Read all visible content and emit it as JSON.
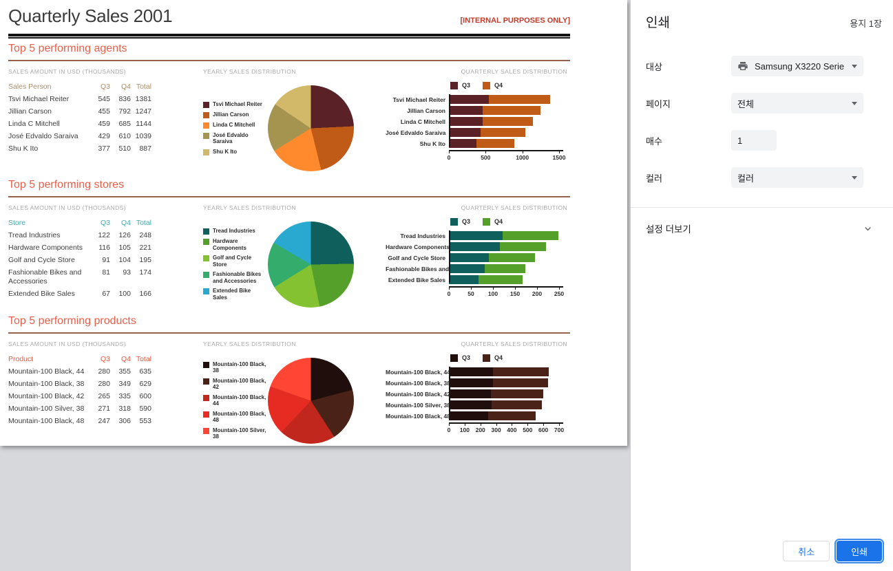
{
  "preview": {
    "title": "Quarterly Sales 2001",
    "watermark": "[INTERNAL PURPOSES ONLY]",
    "sections": [
      {
        "heading": "Top 5 performing agents",
        "table_label": "SALES AMOUNT IN USD (THOUSANDS)",
        "pie_label": "YEARLY SALES DISTRIBUTION",
        "bar_label": "QUARTERLY SALES DISTRIBUTION",
        "entity_header": "Sales Person",
        "q3_header": "Q3",
        "q4_header": "Q4",
        "total_header": "Total",
        "header_color": "#a98d68",
        "rows": [
          {
            "name": "Tsvi Michael Reiter",
            "q3": 545,
            "q4": 836,
            "total": 1381
          },
          {
            "name": "Jillian Carson",
            "q3": 455,
            "q4": 792,
            "total": 1247
          },
          {
            "name": "Linda C Mitchell",
            "q3": 459,
            "q4": 685,
            "total": 1144
          },
          {
            "name": "José Edvaldo Saraiva",
            "q3": 429,
            "q4": 610,
            "total": 1039
          },
          {
            "name": "Shu K Ito",
            "q3": 377,
            "q4": 510,
            "total": 887
          }
        ]
      },
      {
        "heading": "Top 5 performing stores",
        "table_label": "SALES AMOUNT IN USD (THOUSANDS)",
        "pie_label": "YEARLY SALES DISTRIBUTION",
        "bar_label": "QUARTERLY SALES DISTRIBUTION",
        "entity_header": "Store",
        "q3_header": "Q3",
        "q4_header": "Q4",
        "total_header": "Total",
        "header_color": "#45a8b0",
        "rows": [
          {
            "name": "Tread Industries",
            "q3": 122,
            "q4": 126,
            "total": 248
          },
          {
            "name": "Hardware Components",
            "q3": 116,
            "q4": 105,
            "total": 221
          },
          {
            "name": "Golf and Cycle Store",
            "q3": 91,
            "q4": 104,
            "total": 195
          },
          {
            "name": "Fashionable Bikes and Accessories",
            "q3": 81,
            "q4": 93,
            "total": 174
          },
          {
            "name": "Extended Bike Sales",
            "q3": 67,
            "q4": 100,
            "total": 166
          }
        ]
      },
      {
        "heading": "Top 5 performing products",
        "table_label": "SALES AMOUNT IN USD (THOUSANDS)",
        "pie_label": "YEARLY SALES DISTRIBUTION",
        "bar_label": "QUARTERLY SALES DISTRIBUTION",
        "entity_header": "Product",
        "q3_header": "Q3",
        "q4_header": "Q4",
        "total_header": "Total",
        "header_color": "#e55a41",
        "rows": [
          {
            "name": "Mountain-100 Black, 44",
            "q3": 280,
            "q4": 355,
            "total": 635
          },
          {
            "name": "Mountain-100 Black, 38",
            "q3": 280,
            "q4": 349,
            "total": 629
          },
          {
            "name": "Mountain-100 Black, 42",
            "q3": 265,
            "q4": 335,
            "total": 600
          },
          {
            "name": "Mountain-100 Silver, 38",
            "q3": 271,
            "q4": 318,
            "total": 590
          },
          {
            "name": "Mountain-100 Black, 48",
            "q3": 247,
            "q4": 306,
            "total": 553
          }
        ]
      }
    ]
  },
  "chart_data": [
    {
      "type": "pie",
      "section": "Top 5 performing agents",
      "title": "YEARLY SALES DISTRIBUTION",
      "labels": [
        "Tsvi Michael Reiter",
        "Jillian Carson",
        "Linda C Mitchell",
        "José Edvaldo Saraiva",
        "Shu K Ito"
      ],
      "values": [
        1381,
        1247,
        1144,
        1039,
        887
      ],
      "colors": [
        "#5a2226",
        "#bf5a17",
        "#ff8a2e",
        "#a59450",
        "#d2b96a"
      ]
    },
    {
      "type": "bar",
      "section": "Top 5 performing agents",
      "title": "QUARTERLY SALES DISTRIBUTION",
      "horizontal": true,
      "stacked": true,
      "categories": [
        "Tsvi Michael Reiter",
        "Jillian Carson",
        "Linda C Mitchell",
        "José Edvaldo Saraiva",
        "Shu K Ito"
      ],
      "series": [
        {
          "name": "Q3",
          "color": "#5a2226",
          "values": [
            545,
            455,
            459,
            429,
            377
          ]
        },
        {
          "name": "Q4",
          "color": "#bf5a17",
          "values": [
            836,
            792,
            685,
            610,
            510
          ]
        }
      ],
      "xlim": [
        0,
        1500
      ],
      "xticks": [
        0,
        500,
        1000,
        1500
      ]
    },
    {
      "type": "pie",
      "section": "Top 5 performing stores",
      "title": "YEARLY SALES DISTRIBUTION",
      "labels": [
        "Tread Industries",
        "Hardware Components",
        "Golf and Cycle Store",
        "Fashionable Bikes and Accessories",
        "Extended Bike Sales"
      ],
      "values": [
        248,
        221,
        195,
        174,
        166
      ],
      "colors": [
        "#0f5f5c",
        "#55a02a",
        "#85c232",
        "#33ac6c",
        "#29a9cf"
      ]
    },
    {
      "type": "bar",
      "section": "Top 5 performing stores",
      "title": "QUARTERLY SALES DISTRIBUTION",
      "horizontal": true,
      "stacked": true,
      "categories": [
        "Tread Industries",
        "Hardware Components",
        "Golf and Cycle Store",
        "Fashionable Bikes and",
        "Extended Bike Sales"
      ],
      "series": [
        {
          "name": "Q3",
          "color": "#0f5f5c",
          "values": [
            122,
            116,
            91,
            81,
            67
          ]
        },
        {
          "name": "Q4",
          "color": "#55a02a",
          "values": [
            126,
            105,
            104,
            93,
            100
          ]
        }
      ],
      "xlim": [
        0,
        250
      ],
      "xticks": [
        0,
        50,
        100,
        150,
        200,
        250
      ]
    },
    {
      "type": "pie",
      "section": "Top 5 performing products",
      "title": "YEARLY SALES DISTRIBUTION",
      "labels": [
        "Mountain-100 Black, 38",
        "Mountain-100 Black, 42",
        "Mountain-100 Black, 44",
        "Mountain-100 Black, 48",
        "Mountain-100 Silver, 38"
      ],
      "values": [
        629,
        600,
        635,
        553,
        590
      ],
      "colors": [
        "#1f0e0b",
        "#4a2218",
        "#c2271d",
        "#e62c22",
        "#ff4534"
      ]
    },
    {
      "type": "bar",
      "section": "Top 5 performing products",
      "title": "QUARTERLY SALES DISTRIBUTION",
      "horizontal": true,
      "stacked": true,
      "categories": [
        "Mountain-100 Black, 44",
        "Mountain-100 Black, 38",
        "Mountain-100 Black, 42",
        "Mountain-100 Silver, 38",
        "Mountain-100 Black, 48"
      ],
      "series": [
        {
          "name": "Q3",
          "color": "#1f0e0b",
          "values": [
            280,
            280,
            265,
            271,
            247
          ]
        },
        {
          "name": "Q4",
          "color": "#4a2218",
          "values": [
            355,
            349,
            335,
            318,
            306
          ]
        }
      ],
      "xlim": [
        0,
        700
      ],
      "xticks": [
        0,
        100,
        200,
        300,
        400,
        500,
        600,
        700
      ]
    }
  ],
  "print_dialog": {
    "title": "인쇄",
    "sheets": "용지 1장",
    "destination_label": "대상",
    "destination_value": "Samsung X3220 Serie",
    "pages_label": "페이지",
    "pages_value": "전체",
    "copies_label": "매수",
    "copies_value": "1",
    "color_label": "컬러",
    "color_value": "컬러",
    "more_settings": "설정 더보기",
    "cancel_button": "취소",
    "print_button": "인쇄"
  }
}
